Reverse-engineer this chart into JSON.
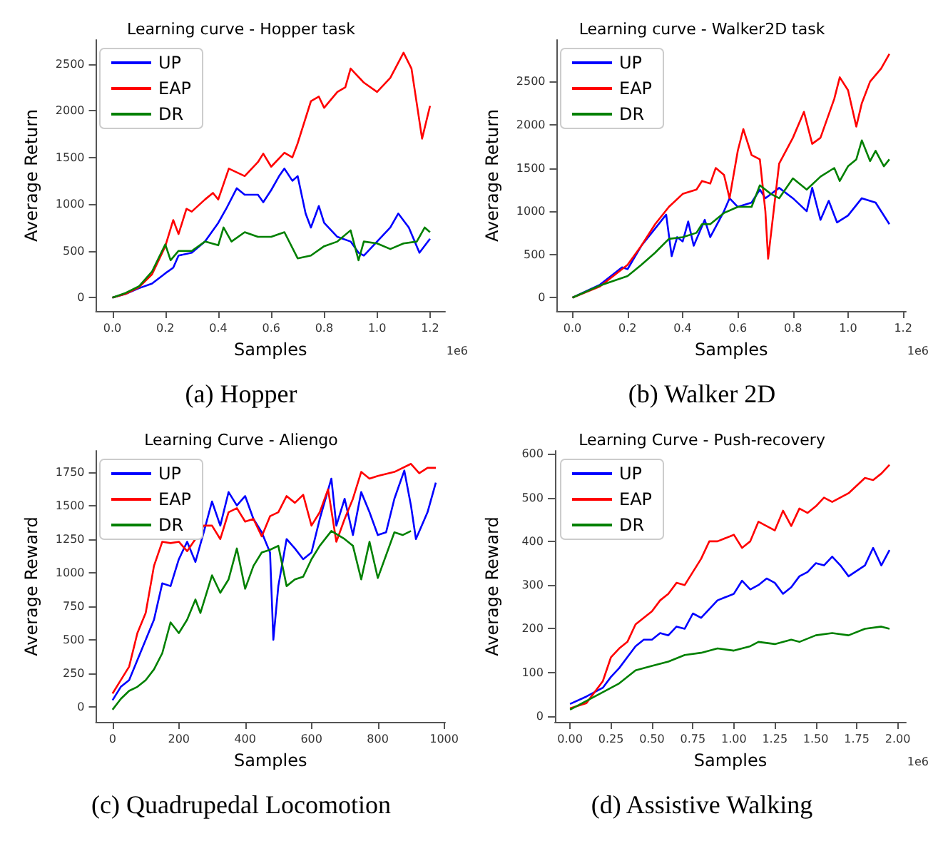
{
  "chart_data": [
    {
      "type": "line",
      "title": "Learning curve - Hopper task",
      "xlabel": "Samples",
      "ylabel": "Average Return",
      "xlim": [
        -0.062,
        1.257
      ],
      "ylim": [
        -143,
        2756
      ],
      "xticks": [
        {
          "value": 0,
          "label": "0.0"
        },
        {
          "value": 0.2,
          "label": "0.2"
        },
        {
          "value": 0.4,
          "label": "0.4"
        },
        {
          "value": 0.6,
          "label": "0.6"
        },
        {
          "value": 0.8,
          "label": "0.8"
        },
        {
          "value": 1,
          "label": "1.0"
        },
        {
          "value": 1.2,
          "label": "1.2"
        }
      ],
      "yticks": [
        0,
        500,
        1000,
        1500,
        2000,
        2500
      ],
      "legend": "top left",
      "grid": false,
      "marker": "none",
      "line_style": "solid",
      "annotations": [
        "1e6",
        "(a) Hopper"
      ],
      "series": [
        {
          "name": "UP",
          "color": "#0000ff",
          "x": [
            0,
            0.05,
            0.1,
            0.15,
            0.2,
            0.23,
            0.25,
            0.3,
            0.35,
            0.4,
            0.43,
            0.47,
            0.5,
            0.55,
            0.57,
            0.6,
            0.63,
            0.65,
            0.68,
            0.7,
            0.73,
            0.75,
            0.78,
            0.8,
            0.85,
            0.9,
            0.93,
            0.95,
            1.0,
            1.05,
            1.08,
            1.12,
            1.16,
            1.2
          ],
          "values": [
            0,
            40,
            100,
            150,
            260,
            320,
            450,
            480,
            600,
            800,
            950,
            1170,
            1100,
            1100,
            1020,
            1150,
            1300,
            1380,
            1250,
            1300,
            900,
            750,
            980,
            800,
            650,
            600,
            480,
            450,
            600,
            750,
            900,
            750,
            480,
            630
          ]
        },
        {
          "name": "EAP",
          "color": "#ff0000",
          "x": [
            0,
            0.05,
            0.1,
            0.15,
            0.2,
            0.23,
            0.25,
            0.28,
            0.3,
            0.35,
            0.38,
            0.4,
            0.44,
            0.5,
            0.55,
            0.57,
            0.6,
            0.65,
            0.68,
            0.7,
            0.75,
            0.78,
            0.8,
            0.85,
            0.88,
            0.9,
            0.95,
            1.0,
            1.05,
            1.1,
            1.13,
            1.17,
            1.2
          ],
          "values": [
            0,
            40,
            110,
            250,
            550,
            830,
            680,
            950,
            920,
            1050,
            1120,
            1050,
            1380,
            1300,
            1450,
            1540,
            1400,
            1550,
            1500,
            1650,
            2100,
            2150,
            2030,
            2200,
            2250,
            2450,
            2300,
            2200,
            2350,
            2620,
            2450,
            1700,
            2050
          ]
        },
        {
          "name": "DR",
          "color": "#008000",
          "x": [
            0,
            0.05,
            0.1,
            0.15,
            0.2,
            0.22,
            0.25,
            0.3,
            0.35,
            0.4,
            0.42,
            0.45,
            0.5,
            0.55,
            0.6,
            0.65,
            0.7,
            0.75,
            0.8,
            0.85,
            0.9,
            0.93,
            0.95,
            1.0,
            1.05,
            1.1,
            1.15,
            1.18,
            1.2
          ],
          "values": [
            0,
            50,
            120,
            280,
            570,
            400,
            500,
            500,
            600,
            560,
            750,
            600,
            700,
            650,
            650,
            700,
            420,
            450,
            550,
            600,
            720,
            400,
            600,
            580,
            520,
            580,
            600,
            750,
            700
          ]
        }
      ]
    },
    {
      "type": "line",
      "title": "Learning curve - Walker2D task",
      "xlabel": "Samples",
      "ylabel": "Average Return",
      "xlim": [
        -0.057,
        1.21
      ],
      "ylim": [
        -155,
        2982
      ],
      "xticks": [
        {
          "value": 0,
          "label": "0.0"
        },
        {
          "value": 0.2,
          "label": "0.2"
        },
        {
          "value": 0.4,
          "label": "0.4"
        },
        {
          "value": 0.6,
          "label": "0.6"
        },
        {
          "value": 0.8,
          "label": "0.8"
        },
        {
          "value": 1,
          "label": "1.0"
        },
        {
          "value": 1.2,
          "label": "1.2"
        }
      ],
      "yticks": [
        0,
        500,
        1000,
        1500,
        2000,
        2500
      ],
      "legend": "top left",
      "grid": false,
      "marker": "none",
      "line_style": "solid",
      "annotations": [
        "1e6",
        "(b) Walker 2D"
      ],
      "series": [
        {
          "name": "UP",
          "color": "#0000ff",
          "x": [
            0,
            0.1,
            0.18,
            0.2,
            0.25,
            0.3,
            0.34,
            0.36,
            0.38,
            0.4,
            0.42,
            0.44,
            0.48,
            0.5,
            0.55,
            0.57,
            0.6,
            0.65,
            0.68,
            0.7,
            0.75,
            0.8,
            0.85,
            0.87,
            0.9,
            0.93,
            0.96,
            1.0,
            1.05,
            1.1,
            1.15
          ],
          "values": [
            0,
            150,
            350,
            330,
            600,
            800,
            960,
            480,
            700,
            650,
            880,
            600,
            900,
            700,
            1000,
            1150,
            1050,
            1100,
            1250,
            1150,
            1270,
            1150,
            1000,
            1270,
            900,
            1120,
            870,
            950,
            1150,
            1100,
            850
          ]
        },
        {
          "name": "EAP",
          "color": "#ff0000",
          "x": [
            0,
            0.1,
            0.2,
            0.25,
            0.3,
            0.35,
            0.4,
            0.45,
            0.47,
            0.5,
            0.52,
            0.55,
            0.57,
            0.6,
            0.62,
            0.65,
            0.68,
            0.7,
            0.71,
            0.73,
            0.75,
            0.8,
            0.84,
            0.87,
            0.9,
            0.95,
            0.97,
            1.0,
            1.03,
            1.05,
            1.08,
            1.12,
            1.15
          ],
          "values": [
            0,
            130,
            380,
            600,
            850,
            1050,
            1200,
            1250,
            1350,
            1320,
            1500,
            1420,
            1150,
            1700,
            1950,
            1650,
            1600,
            1000,
            450,
            1000,
            1550,
            1850,
            2150,
            1780,
            1850,
            2300,
            2550,
            2400,
            1980,
            2250,
            2500,
            2650,
            2820
          ]
        },
        {
          "name": "DR",
          "color": "#008000",
          "x": [
            0,
            0.1,
            0.2,
            0.25,
            0.3,
            0.35,
            0.4,
            0.45,
            0.47,
            0.5,
            0.55,
            0.6,
            0.65,
            0.68,
            0.72,
            0.75,
            0.8,
            0.85,
            0.9,
            0.95,
            0.97,
            1.0,
            1.03,
            1.05,
            1.08,
            1.1,
            1.13,
            1.15
          ],
          "values": [
            0,
            140,
            250,
            380,
            520,
            680,
            700,
            750,
            850,
            850,
            980,
            1050,
            1050,
            1300,
            1200,
            1150,
            1380,
            1250,
            1400,
            1500,
            1350,
            1520,
            1600,
            1820,
            1580,
            1700,
            1520,
            1600
          ]
        }
      ]
    },
    {
      "type": "line",
      "title": "Learning Curve - Aliengo",
      "xlabel": "Samples",
      "ylabel": "Average Reward",
      "xlim": [
        -50,
        1003
      ],
      "ylim": [
        -111,
        1907
      ],
      "xticks": [
        0,
        200,
        400,
        600,
        800,
        1000
      ],
      "yticks": [
        0,
        250,
        500,
        750,
        1000,
        1250,
        1500,
        1750
      ],
      "legend": "top left",
      "grid": false,
      "marker": "none",
      "line_style": "solid",
      "annotations": [
        "(c) Quadrupedal Locomotion"
      ],
      "series": [
        {
          "name": "UP",
          "color": "#0000ff",
          "x": [
            0,
            25,
            50,
            75,
            100,
            125,
            150,
            175,
            200,
            225,
            250,
            275,
            300,
            325,
            350,
            375,
            400,
            425,
            450,
            475,
            485,
            500,
            525,
            550,
            575,
            600,
            625,
            660,
            675,
            700,
            725,
            750,
            775,
            800,
            825,
            850,
            880,
            900,
            915,
            950,
            975
          ],
          "values": [
            50,
            150,
            200,
            350,
            500,
            650,
            920,
            900,
            1100,
            1230,
            1080,
            1300,
            1530,
            1350,
            1600,
            1500,
            1570,
            1400,
            1300,
            1150,
            500,
            900,
            1250,
            1180,
            1100,
            1150,
            1400,
            1700,
            1350,
            1550,
            1280,
            1600,
            1450,
            1280,
            1300,
            1550,
            1760,
            1500,
            1250,
            1450,
            1670
          ]
        },
        {
          "name": "EAP",
          "color": "#ff0000",
          "x": [
            0,
            25,
            50,
            75,
            100,
            125,
            150,
            175,
            200,
            225,
            250,
            275,
            300,
            325,
            350,
            375,
            400,
            425,
            450,
            475,
            500,
            525,
            550,
            575,
            600,
            625,
            650,
            675,
            700,
            725,
            750,
            775,
            800,
            850,
            900,
            925,
            950,
            975
          ],
          "values": [
            100,
            200,
            300,
            550,
            700,
            1050,
            1230,
            1220,
            1230,
            1160,
            1250,
            1350,
            1350,
            1250,
            1450,
            1480,
            1380,
            1400,
            1270,
            1420,
            1450,
            1570,
            1520,
            1580,
            1350,
            1450,
            1620,
            1230,
            1400,
            1550,
            1750,
            1700,
            1720,
            1750,
            1810,
            1740,
            1780,
            1780
          ]
        },
        {
          "name": "DR",
          "color": "#008000",
          "x": [
            0,
            25,
            50,
            75,
            100,
            125,
            150,
            175,
            200,
            225,
            250,
            265,
            300,
            325,
            350,
            375,
            400,
            425,
            450,
            475,
            500,
            525,
            550,
            575,
            600,
            625,
            660,
            700,
            725,
            750,
            775,
            800,
            850,
            875,
            900
          ],
          "values": [
            -20,
            60,
            120,
            150,
            200,
            280,
            400,
            630,
            550,
            650,
            800,
            700,
            980,
            850,
            950,
            1180,
            880,
            1050,
            1150,
            1170,
            1200,
            900,
            950,
            970,
            1100,
            1200,
            1310,
            1250,
            1200,
            950,
            1230,
            960,
            1300,
            1280,
            1310
          ]
        }
      ]
    },
    {
      "type": "line",
      "title": "Learning Curve - Push-recovery",
      "xlabel": "Samples",
      "ylabel": "Average Reward",
      "xlim": [
        -0.092,
        2.05
      ],
      "ylim": [
        -13,
        607
      ],
      "xticks": [
        {
          "value": 0,
          "label": "0.00"
        },
        {
          "value": 0.25,
          "label": "0.25"
        },
        {
          "value": 0.5,
          "label": "0.50"
        },
        {
          "value": 0.75,
          "label": "0.75"
        },
        {
          "value": 1,
          "label": "1.00"
        },
        {
          "value": 1.25,
          "label": "1.25"
        },
        {
          "value": 1.5,
          "label": "1.50"
        },
        {
          "value": 1.75,
          "label": "1.75"
        },
        {
          "value": 2,
          "label": "2.00"
        }
      ],
      "yticks": [
        0,
        100,
        200,
        300,
        400,
        500,
        600
      ],
      "legend": "top left",
      "grid": false,
      "marker": "none",
      "line_style": "solid",
      "annotations": [
        "1e6",
        "(d) Assistive Walking"
      ],
      "series": [
        {
          "name": "UP",
          "color": "#0000ff",
          "x": [
            0,
            0.1,
            0.2,
            0.25,
            0.3,
            0.35,
            0.4,
            0.45,
            0.5,
            0.55,
            0.6,
            0.65,
            0.7,
            0.75,
            0.8,
            0.85,
            0.9,
            1.0,
            1.05,
            1.1,
            1.15,
            1.2,
            1.25,
            1.3,
            1.35,
            1.4,
            1.45,
            1.5,
            1.55,
            1.6,
            1.65,
            1.7,
            1.8,
            1.85,
            1.9,
            1.95
          ],
          "values": [
            28,
            45,
            65,
            90,
            110,
            135,
            160,
            175,
            175,
            190,
            185,
            205,
            200,
            235,
            225,
            245,
            265,
            280,
            310,
            290,
            300,
            315,
            305,
            280,
            295,
            320,
            330,
            350,
            345,
            365,
            345,
            320,
            345,
            385,
            345,
            380
          ]
        },
        {
          "name": "EAP",
          "color": "#ff0000",
          "x": [
            0,
            0.1,
            0.2,
            0.25,
            0.3,
            0.35,
            0.4,
            0.5,
            0.55,
            0.6,
            0.65,
            0.7,
            0.8,
            0.85,
            0.9,
            1.0,
            1.05,
            1.1,
            1.15,
            1.25,
            1.3,
            1.35,
            1.4,
            1.45,
            1.5,
            1.55,
            1.6,
            1.7,
            1.8,
            1.85,
            1.9,
            1.95
          ],
          "values": [
            18,
            30,
            80,
            135,
            155,
            170,
            210,
            240,
            265,
            280,
            305,
            300,
            360,
            400,
            400,
            415,
            385,
            400,
            445,
            425,
            470,
            435,
            475,
            465,
            480,
            500,
            490,
            510,
            545,
            540,
            555,
            575
          ]
        },
        {
          "name": "DR",
          "color": "#008000",
          "x": [
            0,
            0.1,
            0.2,
            0.3,
            0.4,
            0.5,
            0.6,
            0.7,
            0.8,
            0.9,
            1.0,
            1.1,
            1.15,
            1.25,
            1.35,
            1.4,
            1.5,
            1.6,
            1.7,
            1.8,
            1.9,
            1.95
          ],
          "values": [
            15,
            35,
            55,
            75,
            105,
            115,
            125,
            140,
            145,
            155,
            150,
            160,
            170,
            165,
            175,
            170,
            185,
            190,
            185,
            200,
            205,
            200
          ]
        }
      ]
    }
  ]
}
